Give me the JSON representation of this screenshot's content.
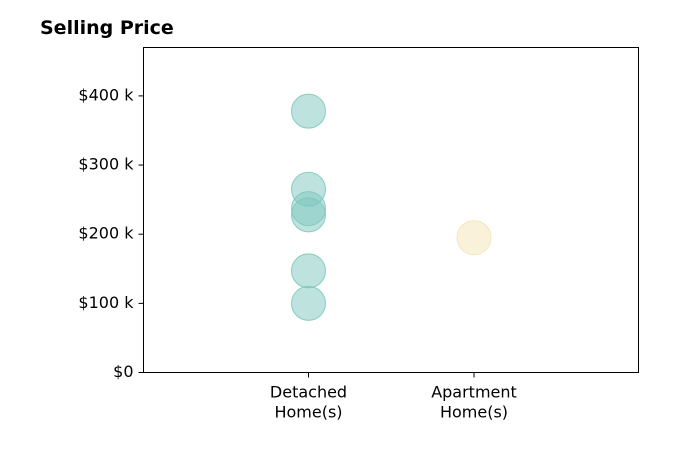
{
  "chart_data": {
    "type": "scatter",
    "title": "Selling Price",
    "xlabel": "",
    "ylabel": "",
    "categories": [
      [
        "Detached",
        "Home(s)"
      ],
      [
        "Apartment",
        "Home(s)"
      ]
    ],
    "ylim": [
      0,
      470000
    ],
    "yticks": [
      {
        "value": 0,
        "label": "$0"
      },
      {
        "value": 100000,
        "label": "$100 k"
      },
      {
        "value": 200000,
        "label": "$200 k"
      },
      {
        "value": 300000,
        "label": "$300 k"
      },
      {
        "value": 400000,
        "label": "$400 k"
      }
    ],
    "series": [
      {
        "category_index": 0,
        "color": "#7ec8bd",
        "values": [
          378000,
          265000,
          237000,
          228000,
          147000,
          100000
        ]
      },
      {
        "category_index": 1,
        "color": "#f5e3b8",
        "values": [
          195000
        ]
      }
    ],
    "grid": false,
    "legend": "none"
  }
}
